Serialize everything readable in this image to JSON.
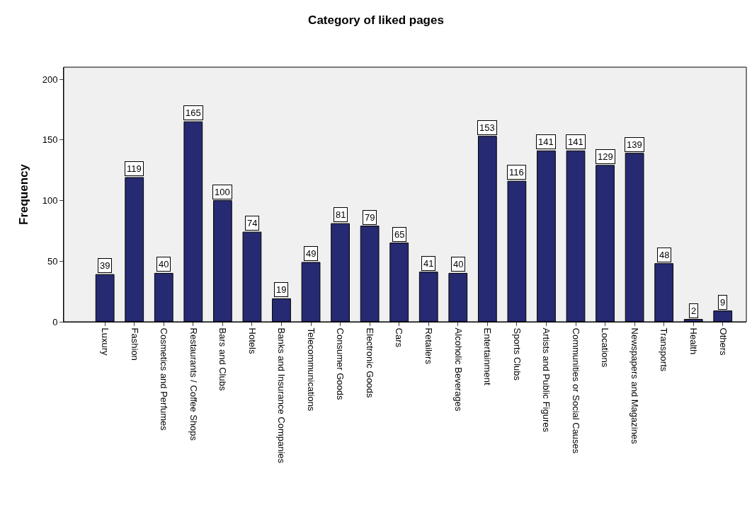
{
  "chart_data": {
    "type": "bar",
    "title": "Category of liked pages",
    "ylabel": "Frequency",
    "categories": [
      "Luxury",
      "Fashion",
      "Cosmetics and Perfumes",
      "Restaurants / Coffee Shops",
      "Bars and Clubs",
      "Hotels",
      "Banks and Insurance Companies",
      "Telecommunications",
      "Consumer Goods",
      "Electronic Goods",
      "Cars",
      "Retailers",
      "Alcoholic Beverages",
      "Entertainment",
      "Sports Clubs",
      "Artists and Public Figures",
      "Communities or Social Causes",
      "Locations",
      "Newspapers and Magazines",
      "Transports",
      "Health",
      "Others"
    ],
    "values": [
      39,
      119,
      40,
      165,
      100,
      74,
      19,
      49,
      81,
      79,
      65,
      41,
      40,
      153,
      116,
      141,
      141,
      129,
      139,
      48,
      2,
      9
    ],
    "color": "#262a72",
    "ylim": [
      0,
      210
    ],
    "yticks": [
      0,
      50,
      100,
      150,
      200
    ],
    "grid": false,
    "data_labels": true
  }
}
